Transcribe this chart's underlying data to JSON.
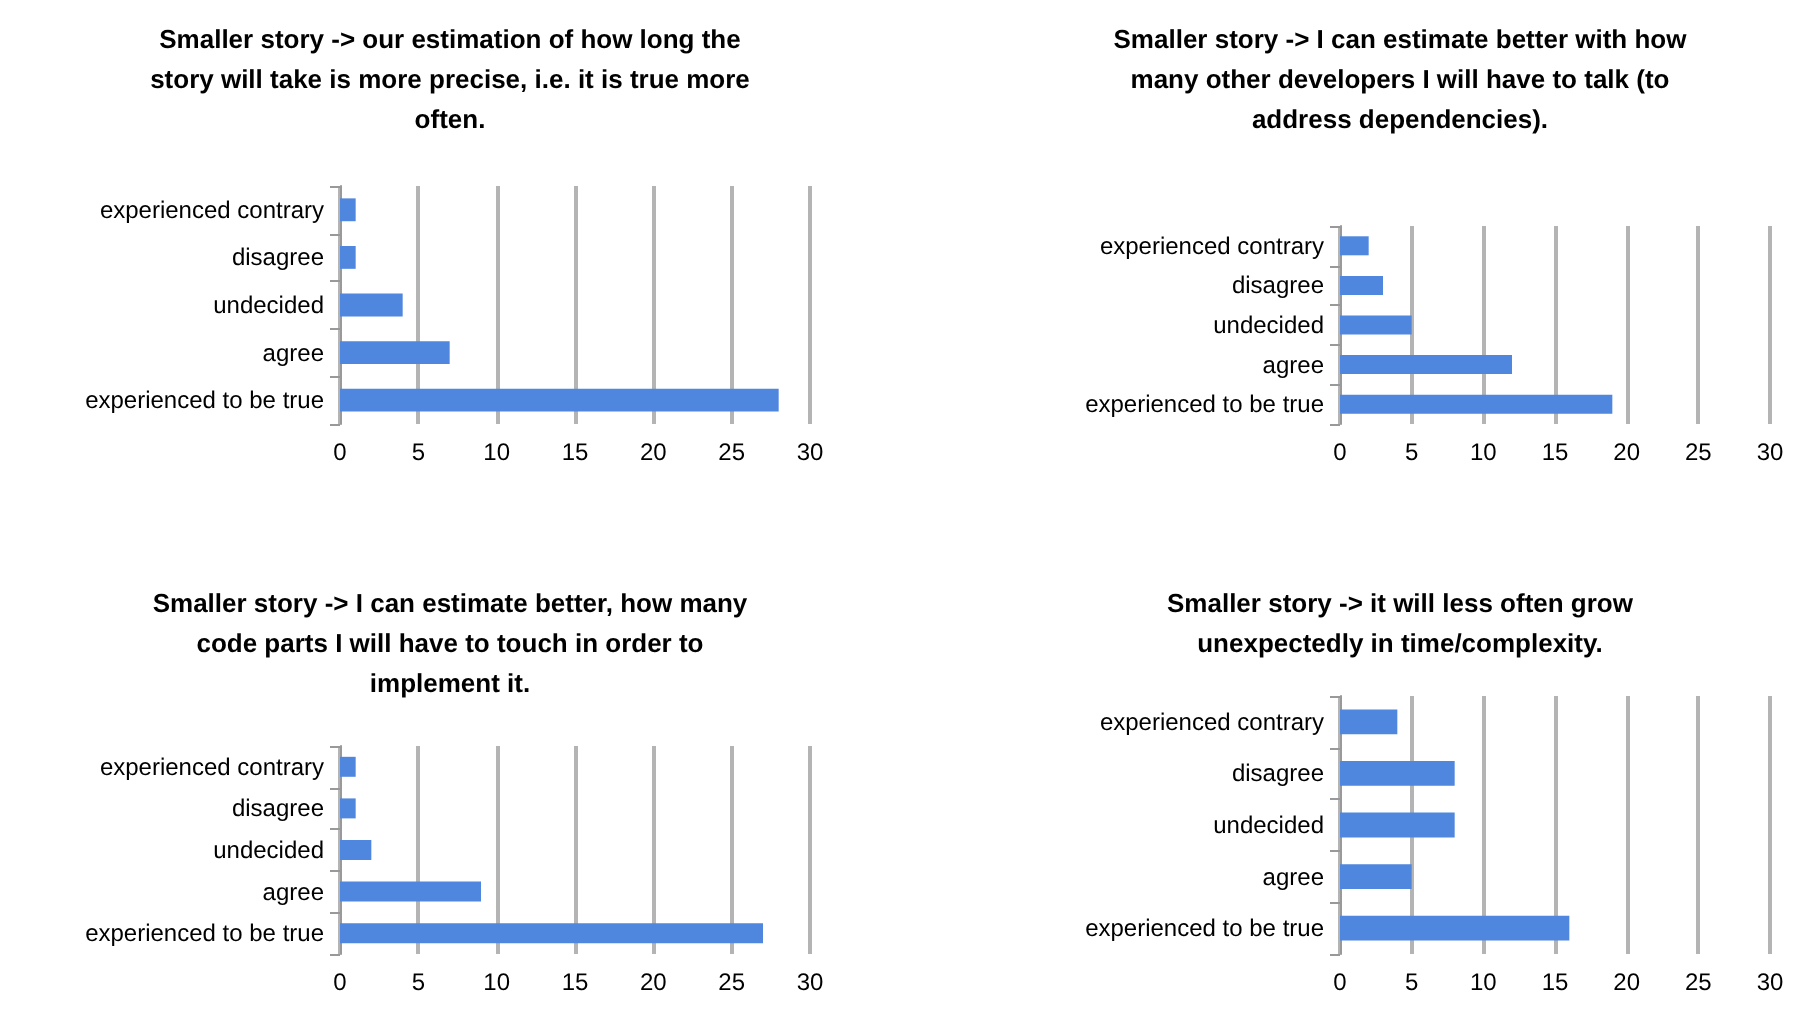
{
  "chart_data": [
    {
      "type": "bar",
      "orientation": "horizontal",
      "title": "Smaller story -> our estimation of how long the story will take is more precise, i.e. it is true more often.",
      "categories": [
        "experienced contrary",
        "disagree",
        "undecided",
        "agree",
        "experienced to be true"
      ],
      "values": [
        1,
        1,
        4,
        7,
        28
      ],
      "color": "#4f86de",
      "xlim": [
        0,
        30
      ],
      "xticks": [
        0,
        5,
        10,
        15,
        20,
        25,
        30
      ],
      "grid": "x"
    },
    {
      "type": "bar",
      "orientation": "horizontal",
      "title": "Smaller story -> I can estimate better with how many other developers I will have to talk (to address dependencies).",
      "categories": [
        "experienced contrary",
        "disagree",
        "undecided",
        "agree",
        "experienced to be true"
      ],
      "values": [
        2,
        3,
        5,
        12,
        19
      ],
      "color": "#4f86de",
      "xlim": [
        0,
        30
      ],
      "xticks": [
        0,
        5,
        10,
        15,
        20,
        25,
        30
      ],
      "grid": "x"
    },
    {
      "type": "bar",
      "orientation": "horizontal",
      "title": "Smaller story -> I can estimate better, how many code parts I will have to touch in order to implement it.",
      "categories": [
        "experienced contrary",
        "disagree",
        "undecided",
        "agree",
        "experienced to be true"
      ],
      "values": [
        1,
        1,
        2,
        9,
        27
      ],
      "color": "#4f86de",
      "xlim": [
        0,
        30
      ],
      "xticks": [
        0,
        5,
        10,
        15,
        20,
        25,
        30
      ],
      "grid": "x"
    },
    {
      "type": "bar",
      "orientation": "horizontal",
      "title": "Smaller story -> it will less often grow unexpectedly in time/complexity.",
      "categories": [
        "experienced contrary",
        "disagree",
        "undecided",
        "agree",
        "experienced to be true"
      ],
      "values": [
        4,
        8,
        8,
        5,
        16
      ],
      "color": "#4f86de",
      "xlim": [
        0,
        30
      ],
      "xticks": [
        0,
        5,
        10,
        15,
        20,
        25,
        30
      ],
      "grid": "x"
    }
  ]
}
